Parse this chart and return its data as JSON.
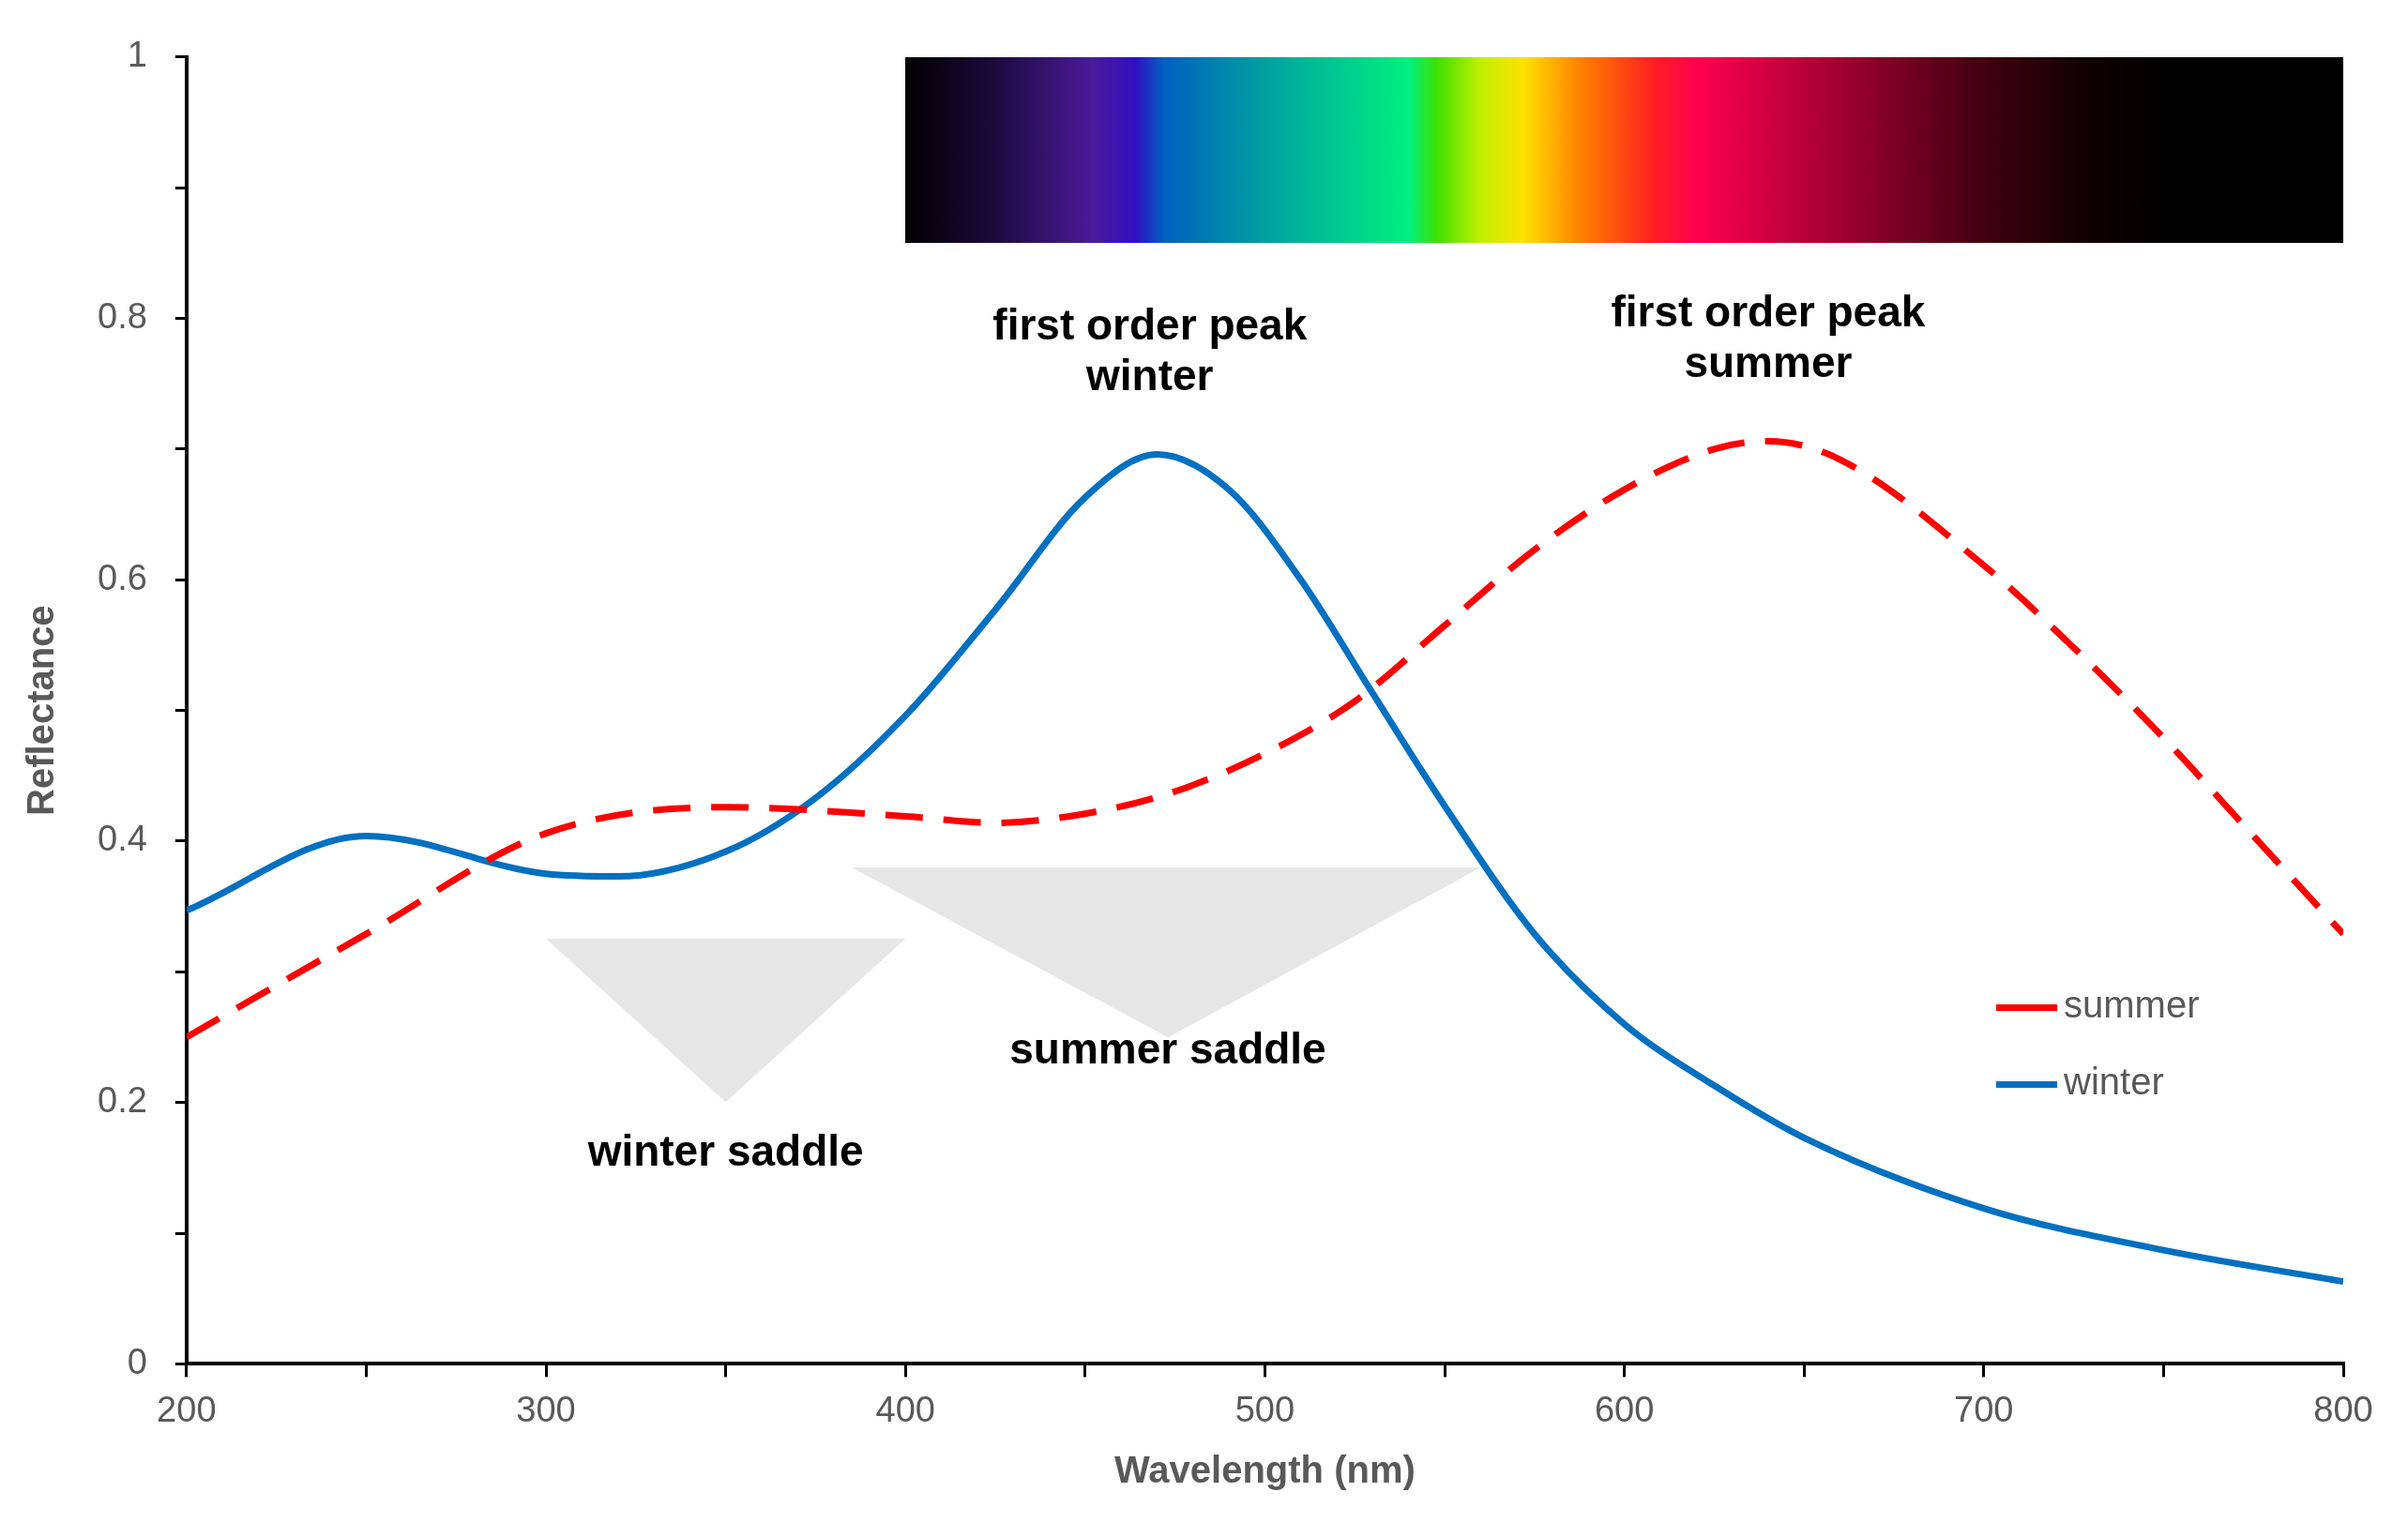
{
  "chart_data": {
    "type": "line",
    "xlabel": "Wavelength (nm)",
    "ylabel": "Reflectance",
    "xlim": [
      200,
      800
    ],
    "xticks": [
      200,
      {
        "value": 250,
        "label": null
      },
      300,
      {
        "value": 350,
        "label": null
      },
      400,
      {
        "value": 450,
        "label": null
      },
      500,
      {
        "value": 550,
        "label": null
      },
      600,
      {
        "value": 650,
        "label": null
      },
      700,
      {
        "value": 750,
        "label": null
      },
      800
    ],
    "ylim": [
      0,
      1
    ],
    "yticks": [
      0,
      {
        "value": 0.1,
        "label": null
      },
      0.2,
      {
        "value": 0.3,
        "label": null
      },
      0.4,
      {
        "value": 0.5,
        "label": null
      },
      0.6,
      {
        "value": 0.7,
        "label": null
      },
      0.8,
      {
        "value": 0.9,
        "label": null
      },
      1
    ],
    "grid": false,
    "legend": "bottom right",
    "marker": "none",
    "series": [
      {
        "name": "summer",
        "color": "#ff0000",
        "line_style": "dashed",
        "x": [
          200,
          250,
          300,
          350,
          400,
          425,
          450,
          475,
          500,
          525,
          550,
          575,
          600,
          625,
          640,
          660,
          700,
          725,
          750,
          775,
          800
        ],
        "values": [
          0.25,
          0.329,
          0.406,
          0.426,
          0.419,
          0.414,
          0.421,
          0.438,
          0.467,
          0.507,
          0.565,
          0.623,
          0.669,
          0.7,
          0.706,
          0.692,
          0.611,
          0.548,
          0.479,
          0.404,
          0.329
        ]
      },
      {
        "name": "winter",
        "color": "#0070c0",
        "line_style": "solid",
        "x": [
          200,
          250,
          300,
          320,
          350,
          375,
          400,
          425,
          450,
          470,
          490,
          510,
          530,
          550,
          575,
          600,
          625,
          650,
          700,
          750,
          800
        ],
        "values": [
          0.347,
          0.404,
          0.375,
          0.373,
          0.392,
          0.433,
          0.496,
          0.577,
          0.663,
          0.696,
          0.669,
          0.6,
          0.513,
          0.427,
          0.329,
          0.26,
          0.213,
          0.173,
          0.119,
          0.087,
          0.063
        ]
      }
    ],
    "annotations": [
      "first order peak\nwinter",
      "first order peak\nsummer",
      "winter saddle",
      "summer saddle"
    ]
  }
}
